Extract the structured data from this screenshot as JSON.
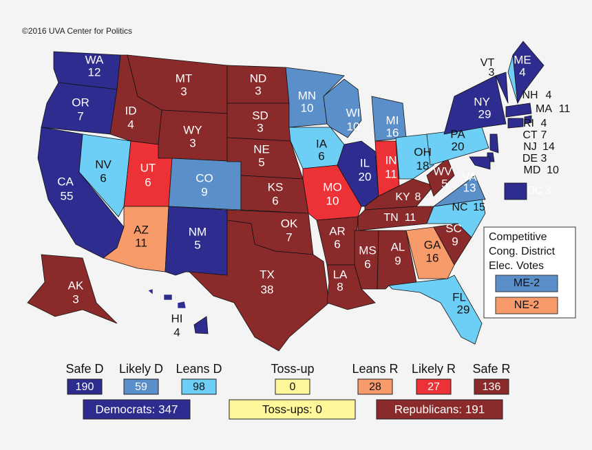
{
  "copyright": "©2016 UVA Center for Politics",
  "states": [
    {
      "abbr": "WA",
      "votes": 12,
      "color": "#2e2d8f"
    },
    {
      "abbr": "OR",
      "votes": 7,
      "color": "#2e2d8f"
    },
    {
      "abbr": "CA",
      "votes": 55,
      "color": "#2e2d8f"
    },
    {
      "abbr": "NV",
      "votes": 6,
      "color": "#6ecff6"
    },
    {
      "abbr": "ID",
      "votes": 4,
      "color": "#8b2a2a"
    },
    {
      "abbr": "MT",
      "votes": 3,
      "color": "#8b2a2a"
    },
    {
      "abbr": "WY",
      "votes": 3,
      "color": "#8b2a2a"
    },
    {
      "abbr": "UT",
      "votes": 6,
      "color": "#ed3237"
    },
    {
      "abbr": "AZ",
      "votes": 11,
      "color": "#f79b6b"
    },
    {
      "abbr": "CO",
      "votes": 9,
      "color": "#5b8fca"
    },
    {
      "abbr": "NM",
      "votes": 5,
      "color": "#2e2d8f"
    },
    {
      "abbr": "ND",
      "votes": 3,
      "color": "#8b2a2a"
    },
    {
      "abbr": "SD",
      "votes": 3,
      "color": "#8b2a2a"
    },
    {
      "abbr": "NE",
      "votes": 5,
      "color": "#8b2a2a"
    },
    {
      "abbr": "KS",
      "votes": 6,
      "color": "#8b2a2a"
    },
    {
      "abbr": "OK",
      "votes": 7,
      "color": "#8b2a2a"
    },
    {
      "abbr": "TX",
      "votes": 38,
      "color": "#8b2a2a"
    },
    {
      "abbr": "MN",
      "votes": 10,
      "color": "#5b8fca"
    },
    {
      "abbr": "IA",
      "votes": 6,
      "color": "#6ecff6"
    },
    {
      "abbr": "MO",
      "votes": 10,
      "color": "#ed3237"
    },
    {
      "abbr": "AR",
      "votes": 6,
      "color": "#8b2a2a"
    },
    {
      "abbr": "LA",
      "votes": 8,
      "color": "#8b2a2a"
    },
    {
      "abbr": "WI",
      "votes": 10,
      "color": "#5b8fca"
    },
    {
      "abbr": "IL",
      "votes": 20,
      "color": "#2e2d8f"
    },
    {
      "abbr": "MI",
      "votes": 16,
      "color": "#5b8fca"
    },
    {
      "abbr": "IN",
      "votes": 11,
      "color": "#ed3237"
    },
    {
      "abbr": "OH",
      "votes": 18,
      "color": "#6ecff6"
    },
    {
      "abbr": "KY",
      "votes": 8,
      "color": "#8b2a2a"
    },
    {
      "abbr": "TN",
      "votes": 11,
      "color": "#8b2a2a"
    },
    {
      "abbr": "MS",
      "votes": 6,
      "color": "#8b2a2a"
    },
    {
      "abbr": "AL",
      "votes": 9,
      "color": "#8b2a2a"
    },
    {
      "abbr": "GA",
      "votes": 16,
      "color": "#f79b6b"
    },
    {
      "abbr": "FL",
      "votes": 29,
      "color": "#6ecff6"
    },
    {
      "abbr": "SC",
      "votes": 9,
      "color": "#8b2a2a"
    },
    {
      "abbr": "NC",
      "votes": 15,
      "color": "#6ecff6"
    },
    {
      "abbr": "VA",
      "votes": 13,
      "color": "#5b8fca"
    },
    {
      "abbr": "WV",
      "votes": 5,
      "color": "#8b2a2a"
    },
    {
      "abbr": "PA",
      "votes": 20,
      "color": "#6ecff6"
    },
    {
      "abbr": "NY",
      "votes": 29,
      "color": "#2e2d8f"
    },
    {
      "abbr": "VT",
      "votes": 3,
      "color": "#2e2d8f"
    },
    {
      "abbr": "NH",
      "votes": 4,
      "color": "#6ecff6"
    },
    {
      "abbr": "ME",
      "votes": 4,
      "color": "#2e2d8f"
    },
    {
      "abbr": "MA",
      "votes": 11,
      "color": "#2e2d8f"
    },
    {
      "abbr": "RI",
      "votes": 4,
      "color": "#2e2d8f"
    },
    {
      "abbr": "CT",
      "votes": 7,
      "color": "#2e2d8f"
    },
    {
      "abbr": "NJ",
      "votes": 14,
      "color": "#2e2d8f"
    },
    {
      "abbr": "DE",
      "votes": 3,
      "color": "#2e2d8f"
    },
    {
      "abbr": "MD",
      "votes": 10,
      "color": "#2e2d8f"
    },
    {
      "abbr": "DC",
      "votes": 3,
      "color": "#2e2d8f"
    },
    {
      "abbr": "AK",
      "votes": 3,
      "color": "#8b2a2a"
    },
    {
      "abbr": "HI",
      "votes": 4,
      "color": "#2e2d8f"
    }
  ],
  "competitive": {
    "title": [
      "Competitive",
      "Cong. District",
      "Elec. Votes"
    ],
    "items": [
      {
        "label": "ME-2",
        "color": "#5b8fca"
      },
      {
        "label": "NE-2",
        "color": "#f79b6b"
      }
    ]
  },
  "legend": [
    {
      "label": "Safe D",
      "value": 190,
      "color": "#2e2d8f"
    },
    {
      "label": "Likely D",
      "value": 59,
      "color": "#5b8fca"
    },
    {
      "label": "Leans D",
      "value": 98,
      "color": "#6ecff6"
    },
    {
      "label": "Toss-up",
      "value": 0,
      "color": "#fff799"
    },
    {
      "label": "Leans R",
      "value": 28,
      "color": "#f79b6b"
    },
    {
      "label": "Likely R",
      "value": 27,
      "color": "#ed3237"
    },
    {
      "label": "Safe R",
      "value": 136,
      "color": "#8b2a2a"
    }
  ],
  "totals": [
    {
      "label": "Democrats: 347",
      "color": "#2e2d8f"
    },
    {
      "label": "Toss-ups: 0",
      "color": "#fff799"
    },
    {
      "label": "Republicans: 191",
      "color": "#8b2a2a"
    }
  ]
}
